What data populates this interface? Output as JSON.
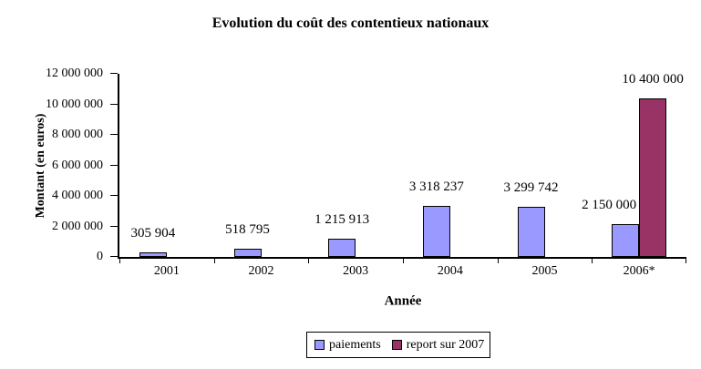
{
  "chart_data": {
    "type": "bar",
    "title": "Evolution du coût des contentieux nationaux",
    "xlabel": "Année",
    "ylabel": "Montant (en euros)",
    "categories": [
      "2001",
      "2002",
      "2003",
      "2004",
      "2005",
      "2006*"
    ],
    "series": [
      {
        "name": "paiements",
        "color": "#9999FF",
        "values": [
          305904,
          518795,
          1215913,
          3318237,
          3299742,
          2150000
        ],
        "labels": [
          "305 904",
          "518 795",
          "1 215 913",
          "3 318 237",
          "3 299 742",
          "2 150 000"
        ]
      },
      {
        "name": "report sur 2007",
        "color": "#993366",
        "values": [
          null,
          null,
          null,
          null,
          null,
          10400000
        ],
        "labels": [
          null,
          null,
          null,
          null,
          null,
          "10 400 000"
        ]
      }
    ],
    "ylim": [
      0,
      12000000
    ],
    "y_ticks": [
      {
        "value": 0,
        "label": "0"
      },
      {
        "value": 2000000,
        "label": "2 000 000"
      },
      {
        "value": 4000000,
        "label": "4 000 000"
      },
      {
        "value": 6000000,
        "label": "6 000 000"
      },
      {
        "value": 8000000,
        "label": "8 000 000"
      },
      {
        "value": 10000000,
        "label": "10 000 000"
      },
      {
        "value": 12000000,
        "label": "12 000 000"
      }
    ],
    "grid": false,
    "legend_position": "bottom",
    "axis_color": "#000000",
    "background_color": "#FFFFFF"
  }
}
